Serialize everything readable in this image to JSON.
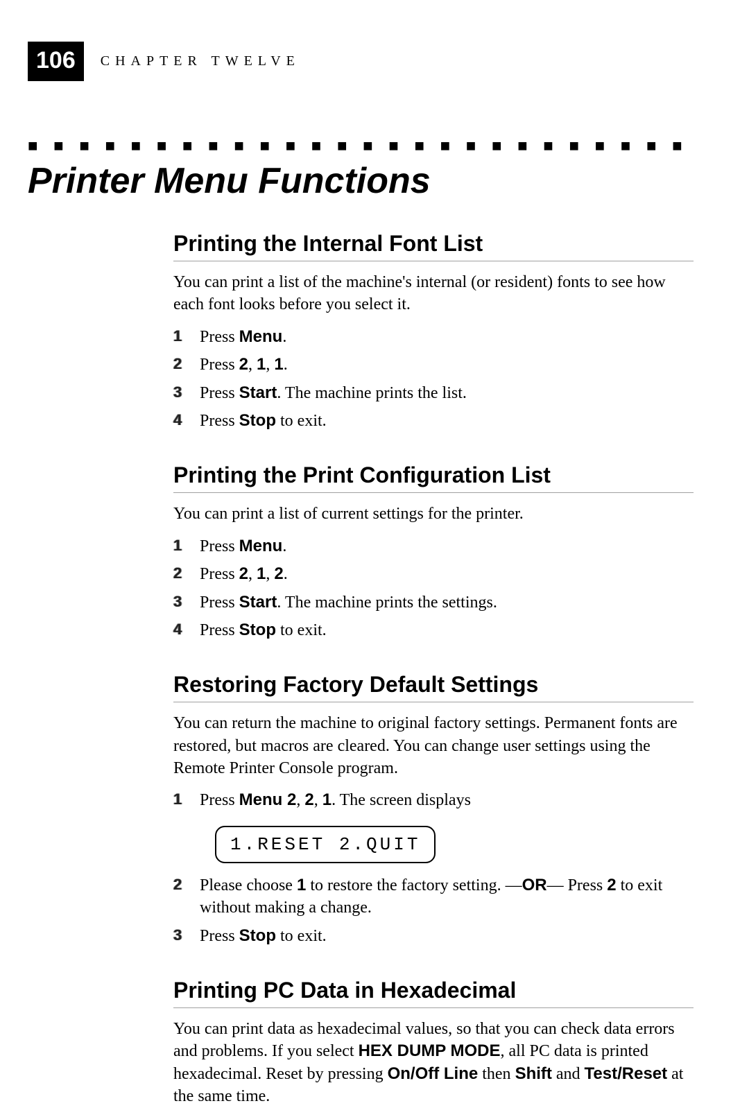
{
  "header": {
    "page_number": "106",
    "chapter_label": "CHAPTER TWELVE"
  },
  "main_title": "Printer Menu Functions",
  "dotted_separator": "■ ■ ■ ■ ■ ■ ■ ■ ■ ■ ■ ■ ■ ■ ■ ■ ■ ■ ■ ■ ■ ■ ■ ■ ■ ■ ■ ■ ■ ■ ■ ■ ■ ■ ■ ■ ■ ■ ■ ■ ■ ■ ■ ■ ■ ■ ■ ■ ■ ■ ■",
  "sections": {
    "font_list": {
      "title": "Printing the Internal Font List",
      "intro": "You can print a list of the machine's internal (or resident) fonts to see how each font looks before you select it.",
      "steps": {
        "s1": {
          "num": "1",
          "html": "Press <b>Menu</b>."
        },
        "s2": {
          "num": "2",
          "html": "Press <b>2</b>, <b>1</b>, <b>1</b>."
        },
        "s3": {
          "num": "3",
          "html": "Press <b>Start</b>. The machine prints the list."
        },
        "s4": {
          "num": "4",
          "html": "Press <b>Stop</b> to exit."
        }
      }
    },
    "config_list": {
      "title": "Printing the Print Configuration List",
      "intro": "You can print a list of current settings for the printer.",
      "steps": {
        "s1": {
          "num": "1",
          "html": "Press <b>Menu</b>."
        },
        "s2": {
          "num": "2",
          "html": "Press <b>2</b>, <b>1</b>, <b>2</b>."
        },
        "s3": {
          "num": "3",
          "html": "Press <b>Start</b>. The machine prints the settings."
        },
        "s4": {
          "num": "4",
          "html": "Press <b>Stop</b> to exit."
        }
      }
    },
    "factory_reset": {
      "title": "Restoring Factory Default Settings",
      "intro": "You can return the machine to original factory settings. Permanent fonts are restored, but macros are cleared. You can change user settings using the Remote Printer Console program.",
      "steps": {
        "s1": {
          "num": "1",
          "html": "Press <b>Menu 2</b>, <b>2</b>, <b>1</b>. The screen displays"
        },
        "display": "1.RESET 2.QUIT",
        "s2": {
          "num": "2",
          "html": "Please choose <b>1</b> to restore the factory setting. —<b>OR</b>— Press <b>2</b> to exit without making a change."
        },
        "s3": {
          "num": "3",
          "html": "Press <b>Stop</b> to exit."
        }
      }
    },
    "hex": {
      "title": "Printing PC Data in Hexadecimal",
      "intro_html": "You can print data as hexadecimal values, so that you can check data errors and problems. If you select <b>HEX DUMP MODE</b>, all PC data is printed hexadecimal. Reset by pressing <b>On/Off Line</b> then <b>Shift</b> and <b>Test/Reset</b> at the same time."
    }
  },
  "style": {
    "page_bg": "#ffffff",
    "text_color": "#000000",
    "pagenum_bg": "#000000",
    "pagenum_fg": "#ffffff",
    "rule_color": "#a0a0a0",
    "title_fontsize": 52,
    "section_title_fontsize": 32,
    "body_fontsize": 24
  }
}
